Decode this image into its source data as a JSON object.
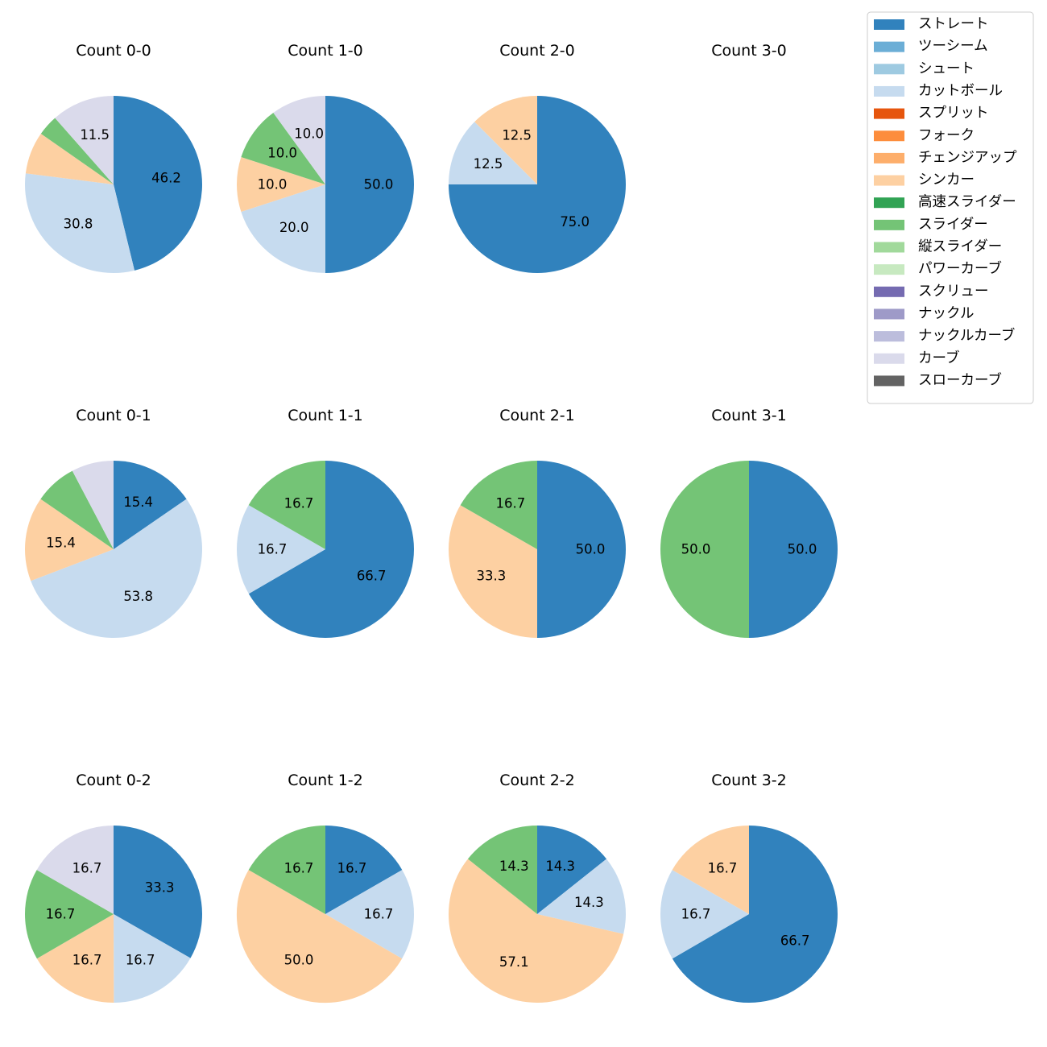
{
  "chart_data": {
    "type": "pie",
    "legend": {
      "placement": "top-right",
      "entries": [
        {
          "name": "ストレート",
          "color": "#3182bd"
        },
        {
          "name": "ツーシーム",
          "color": "#6baed6"
        },
        {
          "name": "シュート",
          "color": "#9ecae1"
        },
        {
          "name": "カットボール",
          "color": "#c6dbef"
        },
        {
          "name": "スプリット",
          "color": "#e6550d"
        },
        {
          "name": "フォーク",
          "color": "#fd8d3c"
        },
        {
          "name": "チェンジアップ",
          "color": "#fdae6b"
        },
        {
          "name": "シンカー",
          "color": "#fdd0a2"
        },
        {
          "name": "高速スライダー",
          "color": "#31a354"
        },
        {
          "name": "スライダー",
          "color": "#74c476"
        },
        {
          "name": "縦スライダー",
          "color": "#a1d99b"
        },
        {
          "name": "パワーカーブ",
          "color": "#c7e9c0"
        },
        {
          "name": "スクリュー",
          "color": "#756bb1"
        },
        {
          "name": "ナックル",
          "color": "#9e9ac8"
        },
        {
          "name": "ナックルカーブ",
          "color": "#bcbddc"
        },
        {
          "name": "カーブ",
          "color": "#dadaeb"
        },
        {
          "name": "スローカーブ",
          "color": "#636363"
        }
      ]
    },
    "panels": [
      {
        "title": "Count 0-0",
        "slices": [
          {
            "pitch": "ストレート",
            "value": 46.2,
            "label": "46.2"
          },
          {
            "pitch": "カットボール",
            "value": 30.8,
            "label": "30.8"
          },
          {
            "pitch": "シンカー",
            "value": 7.7,
            "label": ""
          },
          {
            "pitch": "スライダー",
            "value": 3.8,
            "label": ""
          },
          {
            "pitch": "カーブ",
            "value": 11.5,
            "label": "11.5"
          }
        ]
      },
      {
        "title": "Count 1-0",
        "slices": [
          {
            "pitch": "ストレート",
            "value": 50.0,
            "label": "50.0"
          },
          {
            "pitch": "カットボール",
            "value": 20.0,
            "label": "20.0"
          },
          {
            "pitch": "シンカー",
            "value": 10.0,
            "label": "10.0"
          },
          {
            "pitch": "スライダー",
            "value": 10.0,
            "label": "10.0"
          },
          {
            "pitch": "カーブ",
            "value": 10.0,
            "label": "10.0"
          }
        ]
      },
      {
        "title": "Count 2-0",
        "slices": [
          {
            "pitch": "ストレート",
            "value": 75.0,
            "label": "75.0"
          },
          {
            "pitch": "カットボール",
            "value": 12.5,
            "label": "12.5"
          },
          {
            "pitch": "シンカー",
            "value": 12.5,
            "label": "12.5"
          }
        ]
      },
      {
        "title": "Count 3-0",
        "slices": []
      },
      {
        "title": "Count 0-1",
        "slices": [
          {
            "pitch": "ストレート",
            "value": 15.4,
            "label": "15.4"
          },
          {
            "pitch": "カットボール",
            "value": 53.8,
            "label": "53.8"
          },
          {
            "pitch": "シンカー",
            "value": 15.4,
            "label": "15.4"
          },
          {
            "pitch": "スライダー",
            "value": 7.7,
            "label": ""
          },
          {
            "pitch": "カーブ",
            "value": 7.7,
            "label": ""
          }
        ]
      },
      {
        "title": "Count 1-1",
        "slices": [
          {
            "pitch": "ストレート",
            "value": 66.7,
            "label": "66.7"
          },
          {
            "pitch": "カットボール",
            "value": 16.7,
            "label": "16.7"
          },
          {
            "pitch": "スライダー",
            "value": 16.7,
            "label": "16.7"
          }
        ]
      },
      {
        "title": "Count 2-1",
        "slices": [
          {
            "pitch": "ストレート",
            "value": 50.0,
            "label": "50.0"
          },
          {
            "pitch": "シンカー",
            "value": 33.3,
            "label": "33.3"
          },
          {
            "pitch": "スライダー",
            "value": 16.7,
            "label": "16.7"
          }
        ]
      },
      {
        "title": "Count 3-1",
        "slices": [
          {
            "pitch": "ストレート",
            "value": 50.0,
            "label": "50.0"
          },
          {
            "pitch": "スライダー",
            "value": 50.0,
            "label": "50.0"
          }
        ]
      },
      {
        "title": "Count 0-2",
        "slices": [
          {
            "pitch": "ストレート",
            "value": 33.3,
            "label": "33.3"
          },
          {
            "pitch": "カットボール",
            "value": 16.7,
            "label": "16.7"
          },
          {
            "pitch": "シンカー",
            "value": 16.7,
            "label": "16.7"
          },
          {
            "pitch": "スライダー",
            "value": 16.7,
            "label": "16.7"
          },
          {
            "pitch": "カーブ",
            "value": 16.7,
            "label": "16.7"
          }
        ]
      },
      {
        "title": "Count 1-2",
        "slices": [
          {
            "pitch": "ストレート",
            "value": 16.7,
            "label": "16.7"
          },
          {
            "pitch": "カットボール",
            "value": 16.7,
            "label": "16.7"
          },
          {
            "pitch": "シンカー",
            "value": 50.0,
            "label": "50.0"
          },
          {
            "pitch": "スライダー",
            "value": 16.7,
            "label": "16.7"
          }
        ]
      },
      {
        "title": "Count 2-2",
        "slices": [
          {
            "pitch": "ストレート",
            "value": 14.3,
            "label": "14.3"
          },
          {
            "pitch": "カットボール",
            "value": 14.3,
            "label": "14.3"
          },
          {
            "pitch": "シンカー",
            "value": 57.1,
            "label": "57.1"
          },
          {
            "pitch": "スライダー",
            "value": 14.3,
            "label": "14.3"
          }
        ]
      },
      {
        "title": "Count 3-2",
        "slices": [
          {
            "pitch": "ストレート",
            "value": 66.7,
            "label": "66.7"
          },
          {
            "pitch": "カットボール",
            "value": 16.7,
            "label": "16.7"
          },
          {
            "pitch": "シンカー",
            "value": 16.7,
            "label": "16.7"
          }
        ]
      }
    ]
  }
}
